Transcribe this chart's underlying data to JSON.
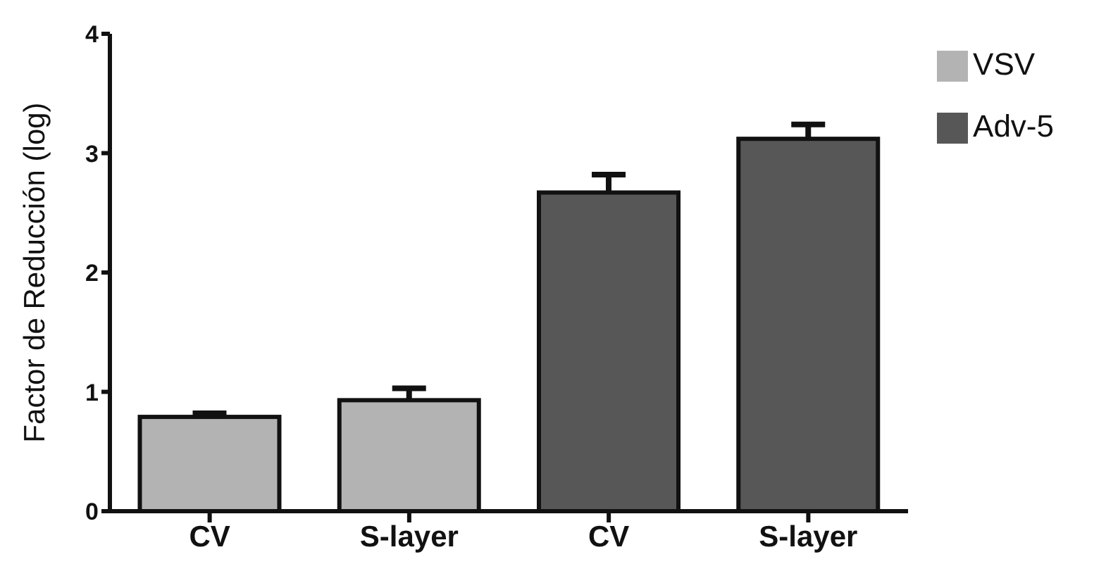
{
  "chart_data": {
    "type": "bar",
    "ylabel": "Factor de Reducción (log)",
    "categories": [
      "CV",
      "S-layer",
      "CV",
      "S-layer"
    ],
    "series": [
      {
        "name": "VSV",
        "color": "#b3b3b3",
        "values": [
          0.79,
          0.93,
          null,
          null
        ],
        "errors": [
          0.03,
          0.1,
          null,
          null
        ]
      },
      {
        "name": "Adv-5",
        "color": "#575757",
        "values": [
          null,
          null,
          2.67,
          3.12
        ],
        "errors": [
          null,
          null,
          0.15,
          0.12
        ]
      }
    ],
    "ylim": [
      0,
      4
    ],
    "yticks": [
      0,
      1,
      2,
      3,
      4
    ],
    "grid": false,
    "legend": "top right"
  }
}
